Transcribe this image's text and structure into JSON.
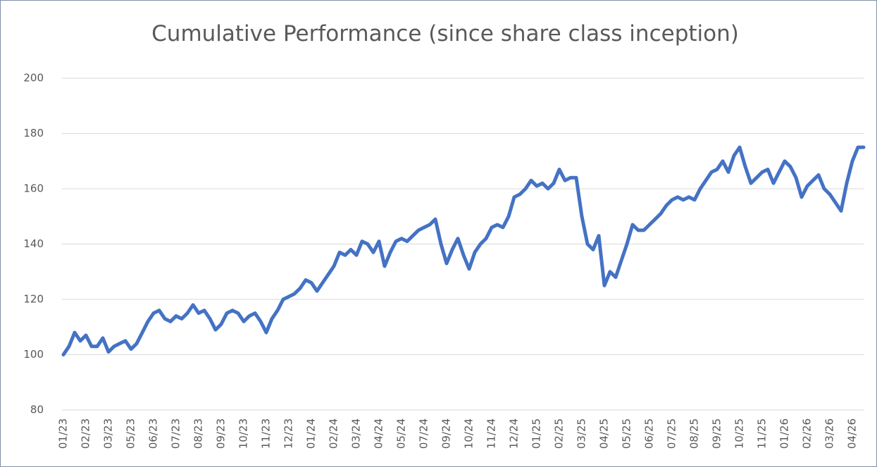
{
  "chart_data": {
    "type": "line",
    "title": "Cumulative Performance (since share class inception)",
    "categories": [
      "01/23",
      null,
      null,
      null,
      "02/23",
      null,
      null,
      null,
      "03/23",
      null,
      null,
      null,
      "05/23",
      null,
      null,
      null,
      "06/23",
      null,
      null,
      null,
      "07/23",
      null,
      null,
      null,
      "08/23",
      null,
      null,
      null,
      "09/23",
      null,
      null,
      null,
      "10/23",
      null,
      null,
      null,
      "11/23",
      null,
      null,
      null,
      "12/23",
      null,
      null,
      null,
      "01/24",
      null,
      null,
      null,
      "02/24",
      null,
      null,
      null,
      "03/24",
      null,
      null,
      null,
      "04/24",
      null,
      null,
      null,
      "05/24",
      null,
      null,
      null,
      "07/24",
      null,
      null,
      null,
      "09/24",
      null,
      null,
      null,
      "10/24",
      null,
      null,
      null,
      "11/24",
      null,
      null,
      null,
      "12/24",
      null,
      null,
      null,
      "01/25",
      null,
      null,
      null,
      "02/25",
      null,
      null,
      null,
      "03/25",
      null,
      null,
      null,
      "04/25",
      null,
      null,
      null,
      "05/25",
      null,
      null,
      null,
      "06/25",
      null,
      null,
      null,
      "07/25",
      null,
      null,
      null,
      "08/25",
      null,
      null,
      null,
      "09/25",
      null,
      null,
      null,
      "10/25",
      null,
      null,
      null,
      "11/25",
      null,
      null,
      null,
      "01/26",
      null,
      null,
      null,
      "02/26",
      null,
      null,
      null,
      "03/26",
      null,
      null,
      null,
      "04/26",
      null,
      null
    ],
    "series": [
      {
        "name": "Cumulative Performance",
        "color": "#4472c4",
        "values": [
          100,
          103,
          108,
          105,
          107,
          103,
          103,
          106,
          101,
          103,
          104,
          105,
          102,
          104,
          108,
          112,
          115,
          116,
          113,
          112,
          114,
          113,
          115,
          118,
          115,
          116,
          113,
          109,
          111,
          115,
          116,
          115,
          112,
          114,
          115,
          112,
          108,
          113,
          116,
          120,
          121,
          122,
          124,
          127,
          126,
          123,
          126,
          129,
          132,
          137,
          136,
          138,
          136,
          141,
          140,
          137,
          141,
          132,
          137,
          141,
          142,
          141,
          143,
          145,
          146,
          147,
          149,
          140,
          133,
          138,
          142,
          136,
          131,
          137,
          140,
          142,
          146,
          147,
          146,
          150,
          157,
          158,
          160,
          163,
          161,
          162,
          160,
          162,
          167,
          163,
          164,
          164,
          150,
          140,
          138,
          143,
          125,
          130,
          128,
          134,
          140,
          147,
          145,
          145,
          147,
          149,
          151,
          154,
          156,
          157,
          156,
          157,
          156,
          160,
          163,
          166,
          167,
          170,
          166,
          172,
          175,
          168,
          162,
          164,
          166,
          167,
          162,
          166,
          170,
          168,
          164,
          157,
          161,
          163,
          165,
          160,
          158,
          155,
          152,
          162,
          170,
          175,
          175
        ]
      }
    ],
    "ylim": [
      80,
      200
    ],
    "yticks": [
      80,
      100,
      120,
      140,
      160,
      180,
      200
    ],
    "grid": true
  }
}
